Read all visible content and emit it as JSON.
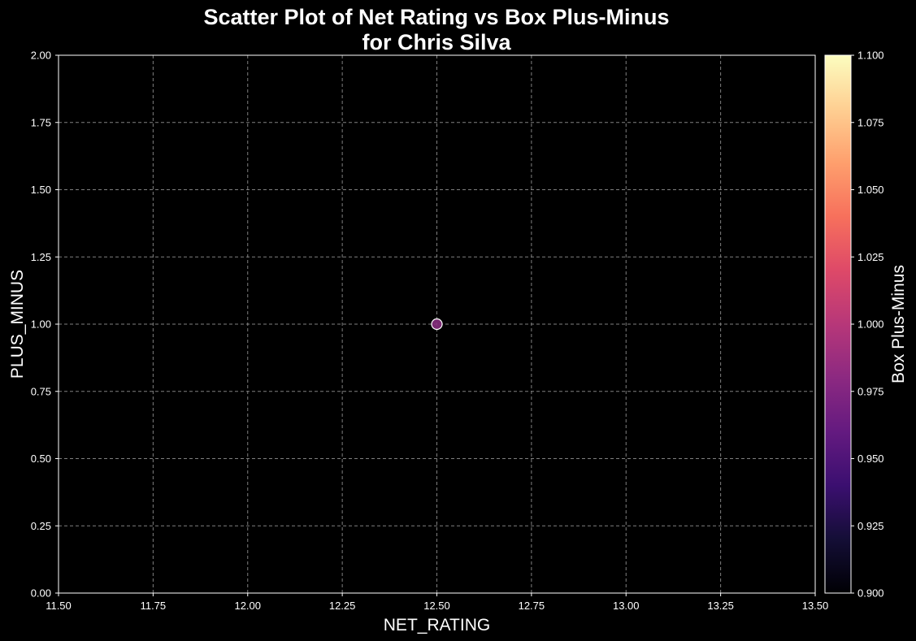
{
  "chart_data": {
    "type": "scatter",
    "title": [
      "Scatter Plot of Net Rating vs Box Plus-Minus",
      "for Chris Silva"
    ],
    "xlabel": "NET_RATING",
    "ylabel": "PLUS_MINUS",
    "xlim": [
      11.5,
      13.5
    ],
    "ylim": [
      0.0,
      2.0
    ],
    "x_ticks": [
      "11.50",
      "11.75",
      "12.00",
      "12.25",
      "12.50",
      "12.75",
      "13.00",
      "13.25",
      "13.50"
    ],
    "y_ticks": [
      "0.00",
      "0.25",
      "0.50",
      "0.75",
      "1.00",
      "1.25",
      "1.50",
      "1.75",
      "2.00"
    ],
    "grid": true,
    "points": [
      {
        "x": 12.5,
        "y": 1.0,
        "c": 1.0
      }
    ],
    "colorbar": {
      "label": "Box Plus-Minus",
      "colormap": "magma",
      "range": [
        0.9,
        1.1
      ],
      "ticks": [
        "0.900",
        "0.925",
        "0.950",
        "0.975",
        "1.000",
        "1.025",
        "1.050",
        "1.075",
        "1.100"
      ]
    },
    "colors": {
      "background": "#000000",
      "grid": "#808080",
      "axis": "#ffffff",
      "point_fill": "#862f7e",
      "point_edge": "#ffffff"
    }
  }
}
